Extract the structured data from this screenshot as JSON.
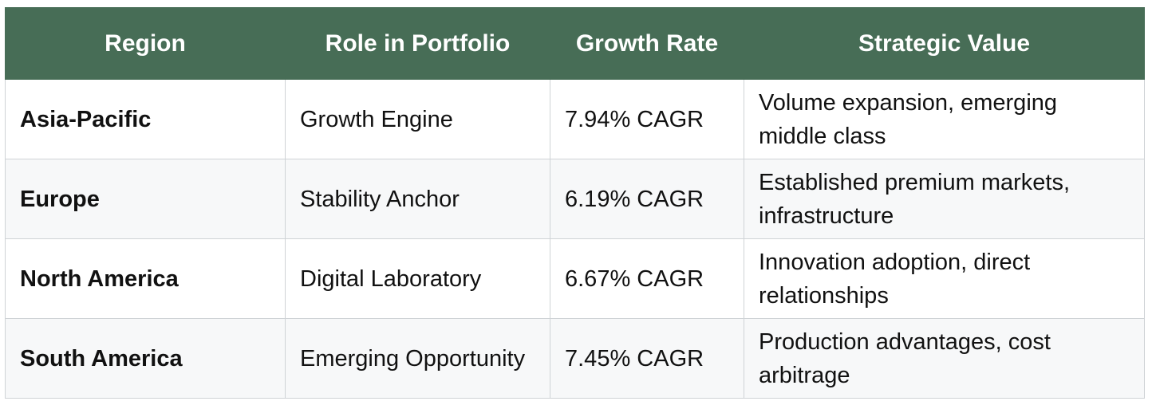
{
  "table": {
    "headers": [
      "Region",
      "Role in Portfolio",
      "Growth Rate",
      "Strategic Value"
    ],
    "rows": [
      {
        "region": "Asia-Pacific",
        "role": "Growth Engine",
        "growth": "7.94% CAGR",
        "value": "Volume expansion, emerging middle class"
      },
      {
        "region": "Europe",
        "role": "Stability Anchor",
        "growth": "6.19% CAGR",
        "value": "Established premium markets, infrastructure"
      },
      {
        "region": "North America",
        "role": "Digital Laboratory",
        "growth": "6.67% CAGR",
        "value": "Innovation adoption, direct relationships"
      },
      {
        "region": "South America",
        "role": "Emerging Opportunity",
        "growth": "7.45% CAGR",
        "value": "Production advantages, cost arbitrage"
      }
    ]
  },
  "colors": {
    "header_bg": "#476d56",
    "header_text": "#ffffff",
    "border": "#cfd3d6"
  }
}
